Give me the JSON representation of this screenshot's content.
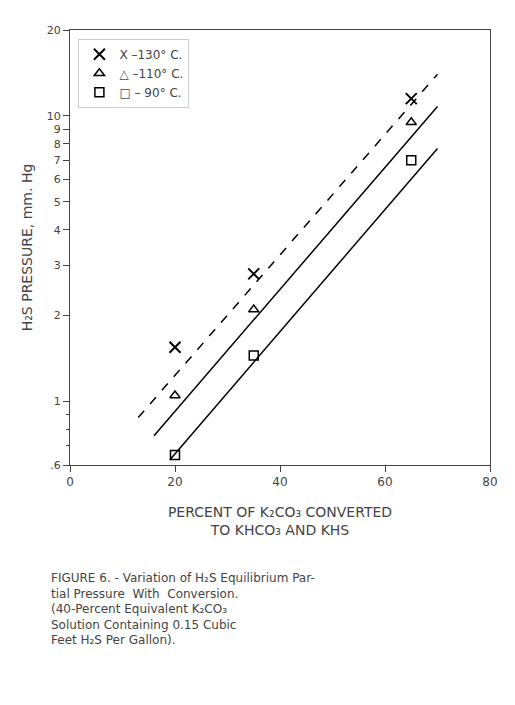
{
  "chart_data": {
    "type": "line",
    "x_label": "PERCENT OF K₂CO₃ CONVERTED\nTO KHCO₃ AND KHS",
    "y_label": "H₂S PRESSURE, mm. Hg",
    "annotations": [
      "FIGURE 6. - Variation of H₂S Equilibrium Par-",
      "tial Pressure  With  Conversion.",
      "(40-Percent Equivalent K₂CO₃",
      "Solution Containing 0.15 Cubic",
      "Feet H₂S Per Gallon)."
    ],
    "log": "y",
    "xlim": [
      0,
      80
    ],
    "ylim": [
      0.6,
      20
    ],
    "xticks": [
      0,
      20,
      40,
      60,
      80
    ],
    "yticks": [
      {
        "value": 0.6,
        "label": ".6"
      },
      1,
      2,
      3,
      4,
      5,
      6,
      7,
      8,
      9,
      10,
      20
    ],
    "yticks_minor": [
      0.7,
      0.8,
      0.9
    ],
    "grid": false,
    "legend": "upper left",
    "series": [
      {
        "name": "X –130° C.",
        "color": "#000000",
        "marker": "x",
        "line_style": "dashed",
        "x": [
          20,
          35,
          65
        ],
        "values": [
          1.55,
          2.8,
          11.5
        ],
        "line_x": [
          13,
          70
        ],
        "line_values": [
          0.88,
          14.0
        ]
      },
      {
        "name": "△ –110° C.",
        "color": "#000000",
        "marker": "triangle",
        "line_style": "solid",
        "x": [
          20,
          35,
          65
        ],
        "values": [
          1.05,
          2.1,
          9.5
        ],
        "line_x": [
          16,
          70
        ],
        "line_values": [
          0.76,
          10.8
        ]
      },
      {
        "name": "□ – 90° C.",
        "color": "#000000",
        "marker": "square",
        "line_style": "solid",
        "x": [
          20,
          35,
          65
        ],
        "values": [
          0.65,
          1.45,
          7.0
        ],
        "line_x": [
          19,
          70
        ],
        "line_values": [
          0.625,
          7.7
        ]
      }
    ]
  }
}
